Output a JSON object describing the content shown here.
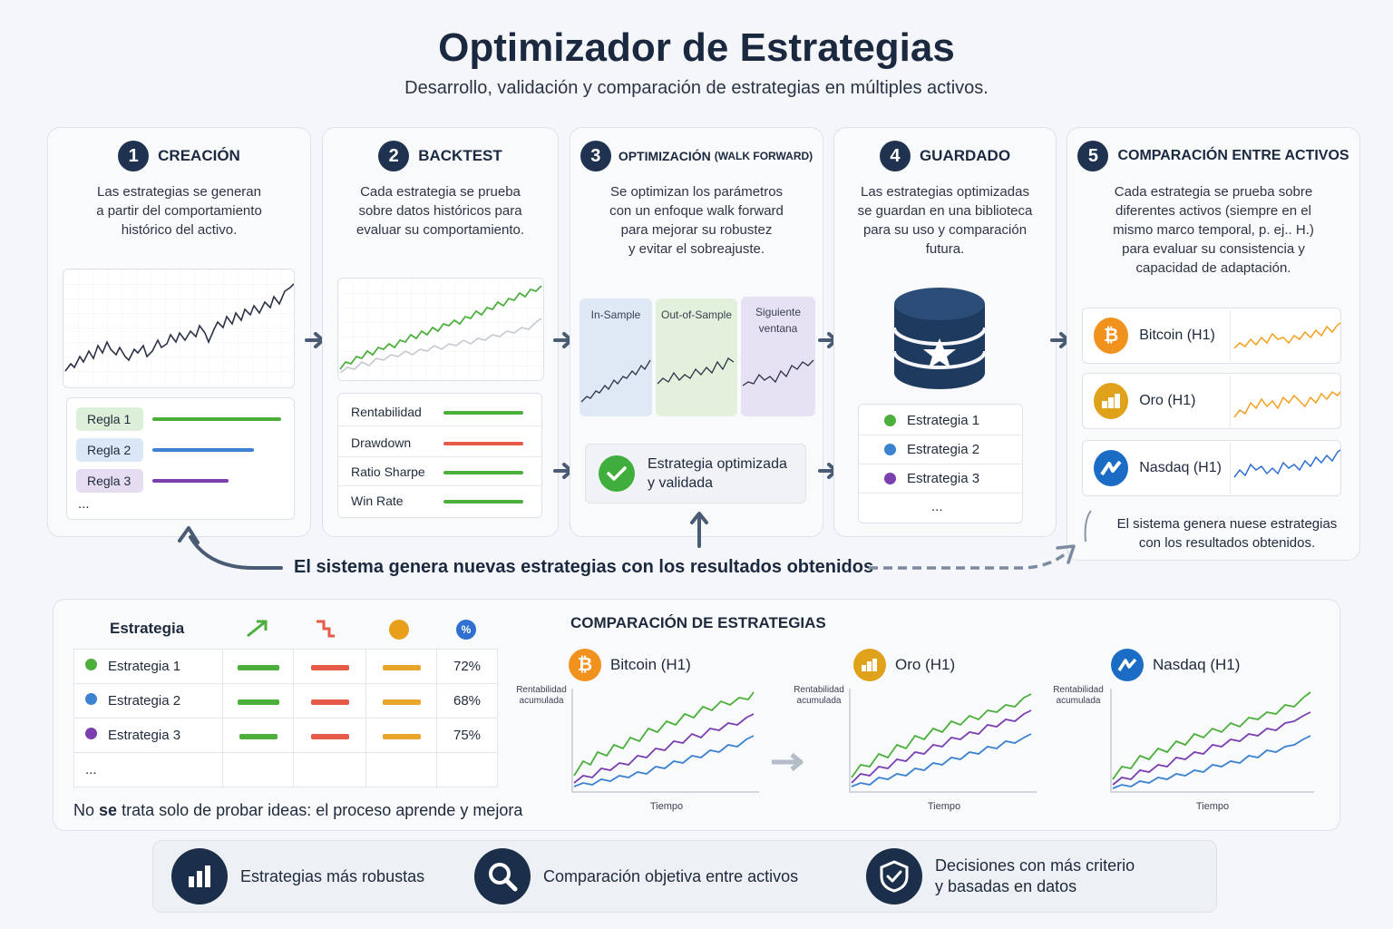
{
  "header": {
    "title": "Optimizador de Estrategias",
    "subtitle": "Desarrollo, validación y comparación de estrategias en múltiples activos."
  },
  "steps": [
    {
      "num": "1",
      "title": "CREACIÓN",
      "desc_lines": [
        "Las estrategias se generan",
        "a partir del comportamiento",
        "histórico del activo."
      ]
    },
    {
      "num": "2",
      "title": "BACKTEST",
      "desc_lines": [
        "Cada estrategia se prueba",
        "sobre datos históricos para",
        "evaluar su comportamiento."
      ]
    },
    {
      "num": "3",
      "title": "OPTIMIZACIÓN",
      "title_small": "(WALK FORWARD)",
      "desc_lines": [
        "Se optimizan los parámetros",
        "con un enfoque walk forward",
        "para mejorar su robustez",
        "y evitar el sobreajuste."
      ]
    },
    {
      "num": "4",
      "title": "GUARDADO",
      "desc_lines": [
        "Las estrategias optimizadas",
        "se guardan en una biblioteca",
        "para su uso y comparación",
        "futura."
      ]
    },
    {
      "num": "5",
      "title": "COMPARACIÓN ENTRE ACTIVOS",
      "desc_lines": [
        "Cada estrategia se prueba sobre",
        "diferentes activos (siempre en el",
        "mismo marco temporal, p. ej.. H.)",
        "para evaluar su consistencia y",
        "capacidad de adaptación."
      ]
    }
  ],
  "rules": [
    {
      "label": "Regla 1",
      "bg": "#dcefd8",
      "color": "#4caf3c"
    },
    {
      "label": "Regla 2",
      "bg": "#dbe6f6",
      "color": "#3b82d0"
    },
    {
      "label": "Regla 3",
      "bg": "#e7ddf3",
      "color": "#7b3fb0"
    },
    {
      "label": "..."
    }
  ],
  "metrics": [
    {
      "label": "Rentabilidad",
      "color": "#4caf3c"
    },
    {
      "label": "Drawdown",
      "color": "#e65a4a"
    },
    {
      "label": "Ratio Sharpe",
      "color": "#4caf3c"
    },
    {
      "label": "Win Rate",
      "color": "#4caf3c"
    }
  ],
  "walk_forward": {
    "windows": [
      {
        "label": "In-Sample",
        "bg": "#dfe9f5"
      },
      {
        "label": "Out-of-Sample",
        "bg": "#e2f0dc"
      },
      {
        "label": "Siguiente ventana",
        "bg": "#e6e1f3"
      }
    ],
    "result": "Estrategia optimizada y validada",
    "result_lines": [
      "Estrategia optimizada",
      "y validada"
    ]
  },
  "library": [
    {
      "label": "Estrategia 1",
      "color": "#4caf3c"
    },
    {
      "label": "Estrategia 2",
      "color": "#3b82d0"
    },
    {
      "label": "Estrategia 3",
      "color": "#7b3fb0"
    },
    {
      "label": "..."
    }
  ],
  "assets": [
    {
      "label": "Bitcoin (H1)",
      "icon": "bitcoin-icon",
      "color": "#f2921e",
      "line": "#f2a01e"
    },
    {
      "label": "Oro (H1)",
      "icon": "gold-icon",
      "color": "#e0a21a",
      "line": "#f2a01e"
    },
    {
      "label": "Nasdaq (H1)",
      "icon": "nasdaq-icon",
      "color": "#1a6cc4",
      "line": "#2f6fd0"
    }
  ],
  "loop_note_step5": [
    "El sistema genera nuese estrategias",
    "con los resultados obtenidos."
  ],
  "loop_note": "El sistema genera nuevas estrategias con los resultados obtenidos",
  "comparison": {
    "table_header": "Estrategia",
    "rows": [
      {
        "name": "Estrategia 1",
        "color": "#4caf3c",
        "pct": "72%"
      },
      {
        "name": "Estrategia 2",
        "color": "#3b82d0",
        "pct": "68%"
      },
      {
        "name": "Estrategia 3",
        "color": "#7b3fb0",
        "pct": "75%"
      },
      {
        "name": "..."
      }
    ],
    "footer_bold": "se",
    "footer_pre": "No",
    "footer_post": "trata solo de probar ideas: el proceso aprende y mejora",
    "charts_title": "COMPARACIÓN DE ESTRATEGIAS",
    "charts": [
      {
        "asset": "Bitcoin (H1)",
        "ylabel_lines": [
          "Rentabilidad",
          "acumulada"
        ],
        "xlabel": "Tiempo"
      },
      {
        "asset": "Oro (H1)",
        "ylabel_lines": [
          "Rentabilidad",
          "acumulada"
        ],
        "xlabel": "Tiempo"
      },
      {
        "asset": "Nasdaq (H1)",
        "ylabel_lines": [
          "Rentabilidad",
          "acumulada"
        ],
        "xlabel": "Tiempo"
      }
    ]
  },
  "benefits": [
    {
      "icon": "bar-chart-icon",
      "lines": [
        "Estrategias más robustas"
      ]
    },
    {
      "icon": "magnifier-icon",
      "lines": [
        "Comparación objetiva entre activos"
      ]
    },
    {
      "icon": "shield-check-icon",
      "lines": [
        "Decisiones con más criterio",
        "y basadas en datos"
      ]
    }
  ]
}
